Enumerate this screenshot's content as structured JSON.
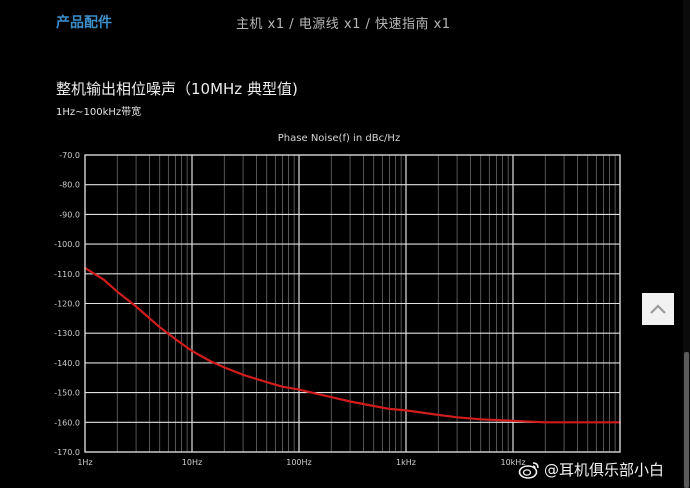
{
  "header": {
    "accessories_title": "产品配件",
    "accessories_list": "主机 x1 / 电源线 x1 / 快速指南 x1"
  },
  "section": {
    "title": "整机输出相位噪声（10MHz 典型值)",
    "subtitle": "1Hz~100kHz带宽"
  },
  "watermark": {
    "text": "@耳机俱乐部小白"
  },
  "colors": {
    "background": "#000000",
    "grid": "#bdbdbd",
    "curve": "#d01c1c",
    "accent": "#3d8ec9"
  },
  "chart_data": {
    "type": "line",
    "title": "Phase Noise(f) in dBc/Hz",
    "xscale": "log",
    "xlim": [
      1,
      100000
    ],
    "ylim": [
      -170,
      -70
    ],
    "x_ticks": [
      {
        "value": 1,
        "label": "1Hz"
      },
      {
        "value": 10,
        "label": "10Hz"
      },
      {
        "value": 100,
        "label": "100Hz"
      },
      {
        "value": 1000,
        "label": "1kHz"
      },
      {
        "value": 10000,
        "label": "10kHz"
      }
    ],
    "y_ticks": [
      {
        "value": -70,
        "label": "-70.0"
      },
      {
        "value": -80,
        "label": "-80.0"
      },
      {
        "value": -90,
        "label": "-90.0"
      },
      {
        "value": -100,
        "label": "-100.0"
      },
      {
        "value": -110,
        "label": "-110.0"
      },
      {
        "value": -120,
        "label": "-120.0"
      },
      {
        "value": -130,
        "label": "-130.0"
      },
      {
        "value": -140,
        "label": "-140.0"
      },
      {
        "value": -150,
        "label": "-150.0"
      },
      {
        "value": -160,
        "label": "-160.0"
      },
      {
        "value": -170,
        "label": "-170.0"
      }
    ],
    "grid": true,
    "series": [
      {
        "x": [
          1,
          1.5,
          2,
          3,
          5,
          7,
          10,
          15,
          20,
          30,
          50,
          70,
          100,
          150,
          200,
          300,
          500,
          700,
          1000,
          2000,
          3000,
          5000,
          10000,
          20000,
          50000,
          100000
        ],
        "y": [
          -108,
          -112,
          -116,
          -121,
          -128,
          -132,
          -136,
          -139.5,
          -141.5,
          -144,
          -146.5,
          -148,
          -149,
          -150.5,
          -151.5,
          -153,
          -154.5,
          -155.5,
          -156,
          -157.5,
          -158.3,
          -159,
          -159.5,
          -160,
          -160,
          -160
        ]
      }
    ]
  }
}
